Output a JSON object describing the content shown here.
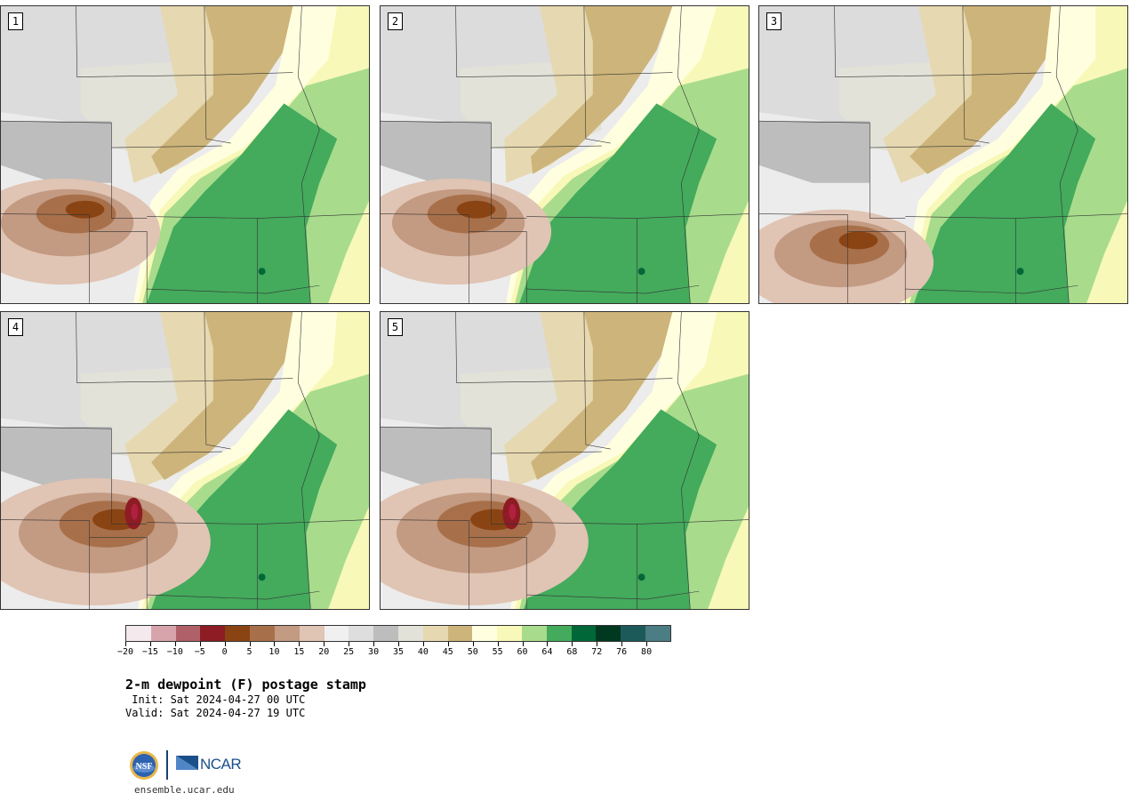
{
  "panels": [
    {
      "label": "1"
    },
    {
      "label": "2"
    },
    {
      "label": "3"
    },
    {
      "label": "4"
    },
    {
      "label": "5"
    }
  ],
  "colorbar": {
    "colors": [
      "#f4e9ec",
      "#d8a4ab",
      "#b06068",
      "#8e1c24",
      "#8a4414",
      "#a8704a",
      "#c39a82",
      "#e0c4b4",
      "#f0f0f0",
      "#dedede",
      "#bdbdbd",
      "#e2e2d8",
      "#e6d8b0",
      "#cdb47a",
      "#ffffe0",
      "#f8f8b8",
      "#a8dc8c",
      "#44aa5c",
      "#006838",
      "#003820",
      "#1c5a5a",
      "#4c7c84"
    ],
    "tick_labels": [
      "−20",
      "−15",
      "−10",
      "−5",
      "0",
      "5",
      "10",
      "15",
      "20",
      "25",
      "30",
      "35",
      "40",
      "45",
      "50",
      "55",
      "60",
      "64",
      "68",
      "72",
      "76",
      "80"
    ]
  },
  "title": "2-m dewpoint (F) postage stamp",
  "init_text": " Init: Sat 2024-04-27 00 UTC",
  "valid_text": "Valid: Sat 2024-04-27 19 UTC",
  "logos": {
    "nsf": "NSF",
    "ncar": "NCAR"
  },
  "site_url": "ensemble.ucar.edu"
}
